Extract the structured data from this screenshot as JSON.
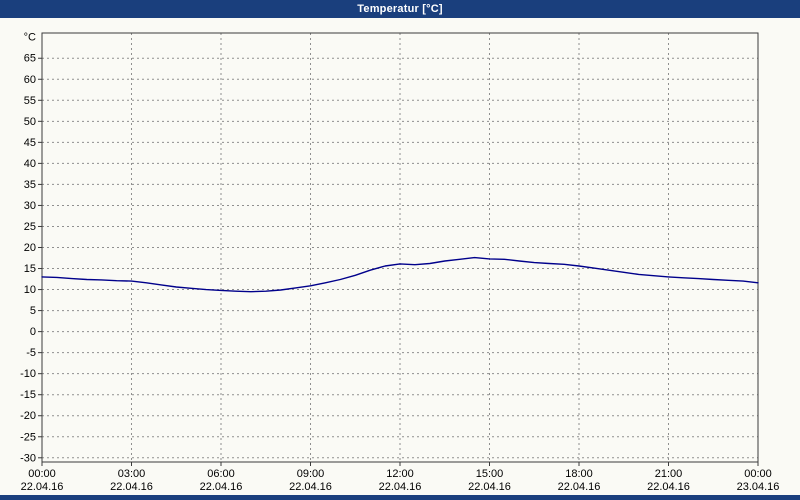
{
  "window": {
    "title": "Temperatur [°C]"
  },
  "colors": {
    "title_bar": "#1a3f7d",
    "line": "#00008b",
    "grid": "#8f8f8f",
    "frame": "#3a3a3a",
    "background": "#fafaf5",
    "label_text": "#000000"
  },
  "chart_data": {
    "type": "line",
    "title": "Temperatur [°C]",
    "y_unit_label": "°C",
    "xlim": [
      0,
      24
    ],
    "ylim": [
      -31,
      71
    ],
    "grid": true,
    "legend": "none",
    "y_ticks": [
      -30,
      -25,
      -20,
      -15,
      -10,
      -5,
      0,
      5,
      10,
      15,
      20,
      25,
      30,
      35,
      40,
      45,
      50,
      55,
      60,
      65
    ],
    "x_ticks": [
      {
        "h": 0,
        "time": "00:00",
        "date": "22.04.16"
      },
      {
        "h": 3,
        "time": "03:00",
        "date": "22.04.16"
      },
      {
        "h": 6,
        "time": "06:00",
        "date": "22.04.16"
      },
      {
        "h": 9,
        "time": "09:00",
        "date": "22.04.16"
      },
      {
        "h": 12,
        "time": "12:00",
        "date": "22.04.16"
      },
      {
        "h": 15,
        "time": "15:00",
        "date": "22.04.16"
      },
      {
        "h": 18,
        "time": "18:00",
        "date": "22.04.16"
      },
      {
        "h": 21,
        "time": "21:00",
        "date": "22.04.16"
      },
      {
        "h": 24,
        "time": "00:00",
        "date": "23.04.16"
      }
    ],
    "series": [
      {
        "name": "Temperatur",
        "points": [
          [
            0,
            13.0
          ],
          [
            0.5,
            12.9
          ],
          [
            1,
            12.6
          ],
          [
            1.5,
            12.4
          ],
          [
            2,
            12.3
          ],
          [
            2.5,
            12.1
          ],
          [
            3,
            12.0
          ],
          [
            3.5,
            11.6
          ],
          [
            4,
            11.1
          ],
          [
            4.5,
            10.6
          ],
          [
            5,
            10.3
          ],
          [
            5.5,
            10.0
          ],
          [
            6,
            9.8
          ],
          [
            6.5,
            9.6
          ],
          [
            7,
            9.5
          ],
          [
            7.5,
            9.6
          ],
          [
            8,
            9.9
          ],
          [
            8.5,
            10.4
          ],
          [
            9,
            10.9
          ],
          [
            9.5,
            11.6
          ],
          [
            10,
            12.4
          ],
          [
            10.5,
            13.4
          ],
          [
            11,
            14.6
          ],
          [
            11.5,
            15.6
          ],
          [
            12,
            16.1
          ],
          [
            12.5,
            15.9
          ],
          [
            13,
            16.2
          ],
          [
            13.5,
            16.8
          ],
          [
            14,
            17.2
          ],
          [
            14.5,
            17.6
          ],
          [
            15,
            17.3
          ],
          [
            15.5,
            17.2
          ],
          [
            16,
            16.8
          ],
          [
            16.5,
            16.4
          ],
          [
            17,
            16.2
          ],
          [
            17.5,
            16.0
          ],
          [
            18,
            15.6
          ],
          [
            18.5,
            15.1
          ],
          [
            19,
            14.6
          ],
          [
            19.5,
            14.1
          ],
          [
            20,
            13.6
          ],
          [
            20.5,
            13.3
          ],
          [
            21,
            13.0
          ],
          [
            21.5,
            12.8
          ],
          [
            22,
            12.6
          ],
          [
            22.5,
            12.4
          ],
          [
            23,
            12.2
          ],
          [
            23.5,
            12.0
          ],
          [
            24,
            11.6
          ]
        ]
      }
    ]
  }
}
